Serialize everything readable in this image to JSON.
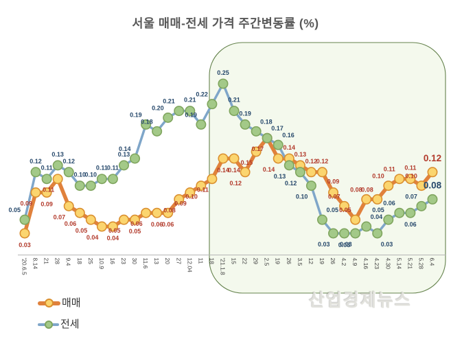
{
  "title": "서울 매매-전세 가격 주간변동률 (%)",
  "watermark": "산업경제뉴스",
  "legend": {
    "position": "bottom-left",
    "items": [
      {
        "label": "매매"
      },
      {
        "label": "전세"
      }
    ]
  },
  "chart_data": {
    "type": "line",
    "title": "서울 매매-전세 가격 주간변동률 (%)",
    "xlabel": "",
    "ylabel": "",
    "ylim": [
      0,
      0.27
    ],
    "grid": false,
    "legend_position": "bottom-left",
    "categories": [
      "'20.6.5",
      "8.14",
      "21",
      "28",
      "9.4",
      "18",
      "25",
      "10.9",
      "16",
      "23",
      "30",
      "11.6",
      "13",
      "20",
      "27",
      "12.04",
      "11",
      "18",
      "'21.1.8",
      "15",
      "22",
      "29",
      "2.5",
      "19",
      "26",
      "3.5",
      "12",
      "19",
      "26",
      "4.2",
      "4.9",
      "4.16",
      "4.23",
      "4.30",
      "5.14",
      "5.21",
      "5.28",
      "6.4"
    ],
    "series": [
      {
        "name": "매매",
        "values": [
          0.03,
          0.09,
          0.09,
          0.11,
          0.07,
          0.06,
          0.05,
          0.04,
          0.04,
          0.05,
          0.05,
          0.06,
          0.06,
          0.06,
          0.08,
          0.09,
          0.1,
          0.11,
          0.14,
          0.14,
          0.12,
          0.15,
          0.17,
          0.14,
          0.14,
          0.13,
          0.12,
          0.12,
          0.09,
          0.07,
          0.05,
          0.08,
          0.08,
          0.1,
          0.11,
          0.11,
          0.1,
          0.12
        ],
        "line_color": "#E0813C",
        "marker_fill": "#FBD56F",
        "marker_stroke": "#DA8F2F",
        "label_color": "#B23A2B"
      },
      {
        "name": "전세",
        "values": [
          0.05,
          0.12,
          0.11,
          0.13,
          0.12,
          0.1,
          0.1,
          0.11,
          0.11,
          0.13,
          0.14,
          0.19,
          0.18,
          0.2,
          0.21,
          0.21,
          0.19,
          0.22,
          0.25,
          0.21,
          0.19,
          0.18,
          0.17,
          0.16,
          0.13,
          0.12,
          0.1,
          0.05,
          0.03,
          0.03,
          0.03,
          0.04,
          0.03,
          0.05,
          0.06,
          0.06,
          0.07,
          0.08
        ],
        "line_color": "#7FA6C9",
        "marker_fill": "#A3C988",
        "marker_stroke": "#7FA55E",
        "label_color": "#26486B"
      }
    ],
    "highlight_region": {
      "start_index": 17,
      "end_index": 37,
      "fill": "#F3F8EC",
      "border": "#64824C"
    },
    "axis_color": "#B5B5B5",
    "tick_label_color": "#3D3D3D"
  }
}
